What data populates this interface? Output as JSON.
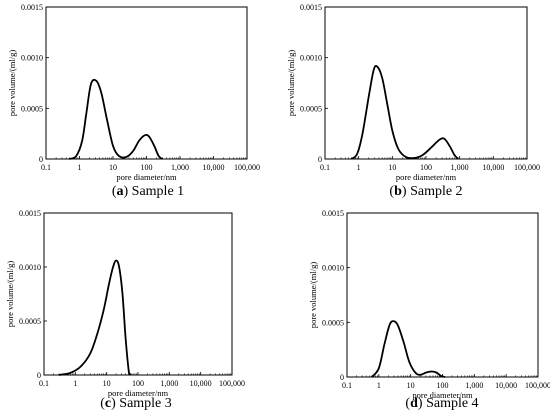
{
  "chart_data": [
    {
      "type": "line",
      "xlabel": "pore diameter/nm",
      "ylabel": "pore volume/(ml/g)",
      "x_scale": "log",
      "xlim": [
        0.1,
        100000
      ],
      "ylim": [
        0,
        0.0015
      ],
      "x_ticks": [
        "0.1",
        "1",
        "10",
        "100",
        "1,000",
        "10,000",
        "100,000"
      ],
      "y_ticks": [
        "0",
        "0.0005",
        "0.0010",
        "0.0015"
      ],
      "caption_letter": "(a)",
      "caption_text": "Sample 1",
      "series": [
        {
          "x": [
            0.5,
            0.8,
            1.2,
            1.6,
            2.2,
            3.2,
            4.5,
            6.5,
            10,
            15,
            25,
            40,
            60,
            90,
            120,
            170,
            230,
            300
          ],
          "y": [
            0,
            3e-05,
            0.00018,
            0.00045,
            0.00074,
            0.00077,
            0.00065,
            0.0004,
            0.00013,
            3e-05,
            2e-05,
            8e-05,
            0.00018,
            0.000235,
            0.00022,
            0.00013,
            3e-05,
            0
          ]
        }
      ]
    },
    {
      "type": "line",
      "xlabel": "pore diameter/nm",
      "ylabel": "pore volume/(ml/g)",
      "x_scale": "log",
      "xlim": [
        0.1,
        100000
      ],
      "ylim": [
        0,
        0.0015
      ],
      "x_ticks": [
        "0.1",
        "1",
        "10",
        "100",
        "1,000",
        "10,000",
        "100,000"
      ],
      "y_ticks": [
        "0",
        "0.0005",
        "0.0010",
        "0.0015"
      ],
      "caption_letter": "(b)",
      "caption_text": "Sample 2",
      "series": [
        {
          "x": [
            0.6,
            0.9,
            1.3,
            2,
            2.8,
            3.6,
            5,
            7,
            10,
            15,
            25,
            45,
            80,
            150,
            250,
            350,
            500,
            700,
            900
          ],
          "y": [
            0,
            5e-05,
            0.00025,
            0.00062,
            0.00088,
            0.00091,
            0.0008,
            0.00055,
            0.00028,
            0.0001,
            2e-05,
            1e-05,
            4e-05,
            0.00012,
            0.00019,
            0.0002,
            0.00013,
            4e-05,
            0
          ]
        }
      ]
    },
    {
      "type": "line",
      "xlabel": "pore diameter/nm",
      "ylabel": "pore volume/(ml/g)",
      "x_scale": "log",
      "xlim": [
        0.1,
        100000
      ],
      "ylim": [
        0,
        0.0015
      ],
      "x_ticks": [
        "0.1",
        "1",
        "10",
        "100",
        "1,000",
        "10,000",
        "100,000"
      ],
      "y_ticks": [
        "0",
        "0.0005",
        "0.0010",
        "0.0015"
      ],
      "caption_letter": "(c)",
      "caption_text": "Sample 3",
      "series": [
        {
          "x": [
            0.3,
            0.7,
            1.5,
            3,
            5,
            8,
            12,
            16,
            20,
            25,
            32,
            40,
            50,
            55,
            60
          ],
          "y": [
            0,
            2e-05,
            8e-05,
            0.0002,
            0.00038,
            0.0006,
            0.00085,
            0.001,
            0.00106,
            0.001,
            0.00075,
            0.00035,
            5e-05,
            1e-05,
            0
          ]
        }
      ]
    },
    {
      "type": "line",
      "xlabel": "pore diameter/nm",
      "ylabel": "pore volume/(ml/g)",
      "x_scale": "log",
      "xlim": [
        0.1,
        100000
      ],
      "ylim": [
        0,
        0.0015
      ],
      "x_ticks": [
        "0.1",
        "1",
        "10",
        "100",
        "1,000",
        "10,000",
        "100,000"
      ],
      "y_ticks": [
        "0",
        "0.0005",
        "0.0010",
        "0.0015"
      ],
      "caption_letter": "(d)",
      "caption_text": "Sample 4",
      "series": [
        {
          "x": [
            0.6,
            1,
            1.5,
            2.2,
            3,
            4,
            6,
            9,
            14,
            20,
            30,
            45,
            65,
            90,
            120
          ],
          "y": [
            0,
            8e-05,
            0.0003,
            0.00048,
            0.00051,
            0.00047,
            0.00032,
            0.00014,
            4e-05,
            2e-05,
            4e-05,
            5e-05,
            4e-05,
            1e-05,
            0
          ]
        }
      ]
    }
  ]
}
